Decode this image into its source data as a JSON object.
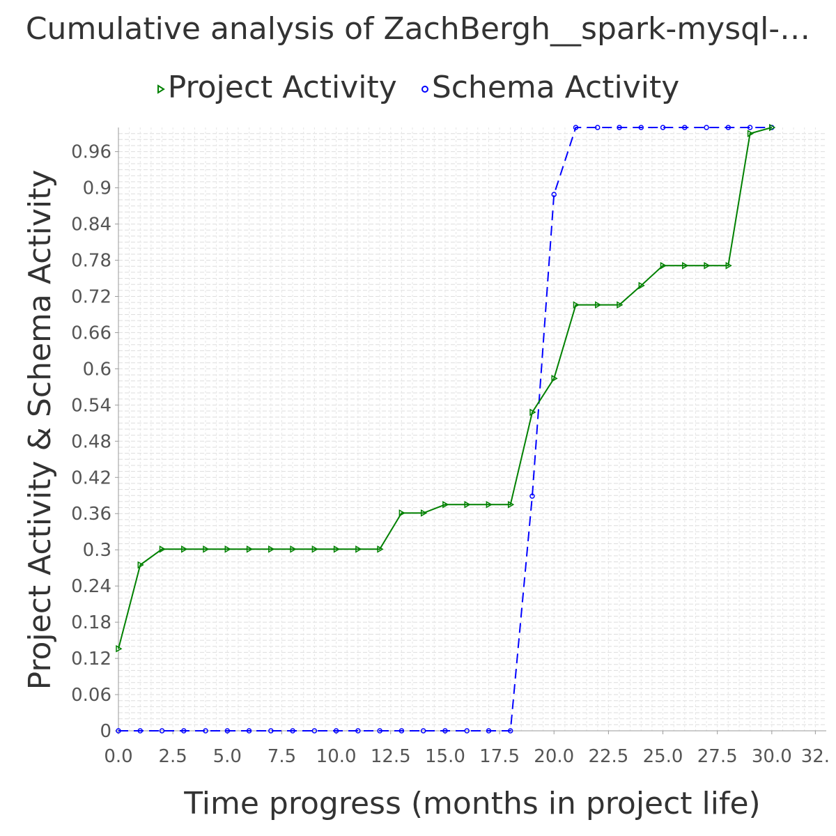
{
  "chart_data": {
    "type": "line",
    "title": "Cumulative analysis of ZachBergh__spark-mysql-…",
    "xlabel": "Time progress (months in project life)",
    "ylabel": "Project Activity & Schema Activity",
    "xlim": [
      0,
      32.5
    ],
    "ylim": [
      0,
      1.0
    ],
    "x_ticks": [
      "0.0",
      "2.5",
      "5.0",
      "7.5",
      "10.0",
      "12.5",
      "15.0",
      "17.5",
      "20.0",
      "22.5",
      "25.0",
      "27.5",
      "30.0",
      "32."
    ],
    "y_ticks": [
      "0",
      "0.06",
      "0.12",
      "0.18",
      "0.24",
      "0.3",
      "0.36",
      "0.42",
      "0.48",
      "0.54",
      "0.6",
      "0.66",
      "0.72",
      "0.78",
      "0.84",
      "0.9",
      "0.96"
    ],
    "grid": true,
    "legend_position": "top",
    "series": [
      {
        "name": "Project Activity",
        "color": "#008000",
        "line_style": "solid",
        "marker": "triangle-right",
        "x": [
          0,
          1,
          2,
          3,
          4,
          5,
          6,
          7,
          8,
          9,
          10,
          11,
          12,
          13,
          14,
          15,
          16,
          17,
          18,
          19,
          20,
          21,
          22,
          23,
          24,
          25,
          26,
          27,
          28,
          29,
          30
        ],
        "y": [
          0.136,
          0.275,
          0.301,
          0.301,
          0.301,
          0.301,
          0.301,
          0.301,
          0.301,
          0.301,
          0.301,
          0.301,
          0.301,
          0.361,
          0.361,
          0.375,
          0.375,
          0.375,
          0.375,
          0.528,
          0.584,
          0.706,
          0.706,
          0.706,
          0.738,
          0.771,
          0.771,
          0.771,
          0.771,
          0.99,
          1.0
        ]
      },
      {
        "name": "Schema Activity",
        "color": "#0000ff",
        "line_style": "dashed",
        "marker": "circle",
        "x": [
          0,
          1,
          2,
          3,
          4,
          5,
          6,
          7,
          8,
          9,
          10,
          11,
          12,
          13,
          14,
          15,
          16,
          17,
          18,
          19,
          20,
          21,
          22,
          23,
          24,
          25,
          26,
          27,
          28,
          29,
          30
        ],
        "y": [
          0,
          0,
          0,
          0,
          0,
          0,
          0,
          0,
          0,
          0,
          0,
          0,
          0,
          0,
          0,
          0,
          0,
          0,
          0,
          0.389,
          0.889,
          1.0,
          1.0,
          1.0,
          1.0,
          1.0,
          1.0,
          1.0,
          1.0,
          1.0,
          1.0
        ]
      }
    ]
  }
}
